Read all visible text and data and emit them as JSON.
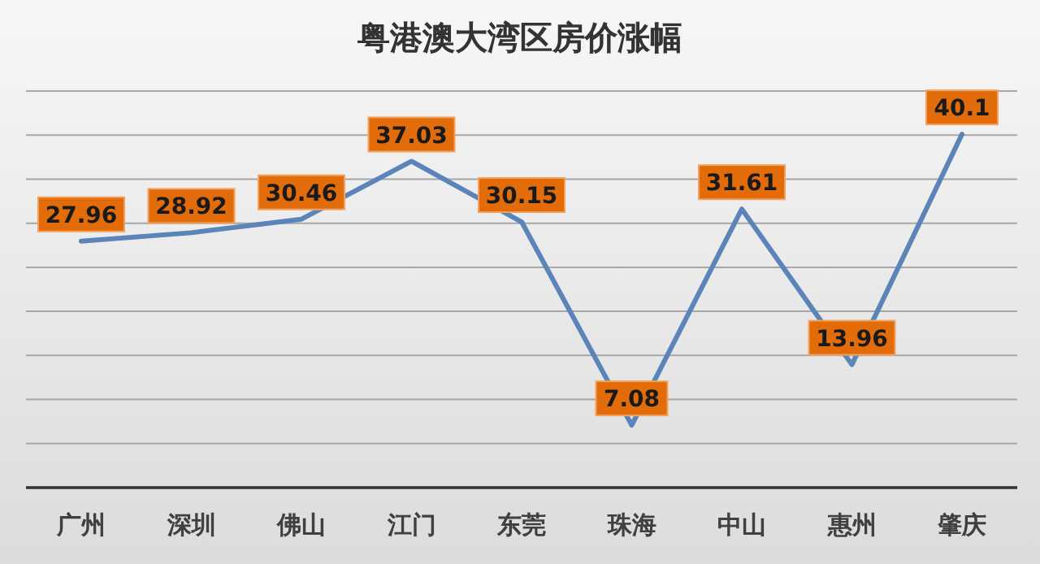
{
  "chart_data": {
    "type": "line",
    "title": "粤港澳大湾区房价涨幅",
    "categories": [
      "广州",
      "深圳",
      "佛山",
      "江门",
      "东莞",
      "珠海",
      "中山",
      "惠州",
      "肇庆"
    ],
    "series": [
      {
        "color": "#5b85b8",
        "values": [
          27.96,
          28.92,
          30.46,
          37.03,
          30.15,
          7.08,
          31.61,
          13.96,
          40.1
        ]
      }
    ],
    "ylim": [
      0,
      45
    ],
    "yticks": [
      {
        "value": 0,
        "label": null
      },
      {
        "value": 5,
        "label": null
      },
      {
        "value": 10,
        "label": null
      },
      {
        "value": 15,
        "label": null
      },
      {
        "value": 20,
        "label": null
      },
      {
        "value": 25,
        "label": null
      },
      {
        "value": 30,
        "label": null
      },
      {
        "value": 35,
        "label": null
      },
      {
        "value": 40,
        "label": null
      },
      {
        "value": 45,
        "label": null
      }
    ],
    "tick_labels": "x",
    "grid": "y",
    "data_labels": true,
    "line_style": "solid"
  }
}
